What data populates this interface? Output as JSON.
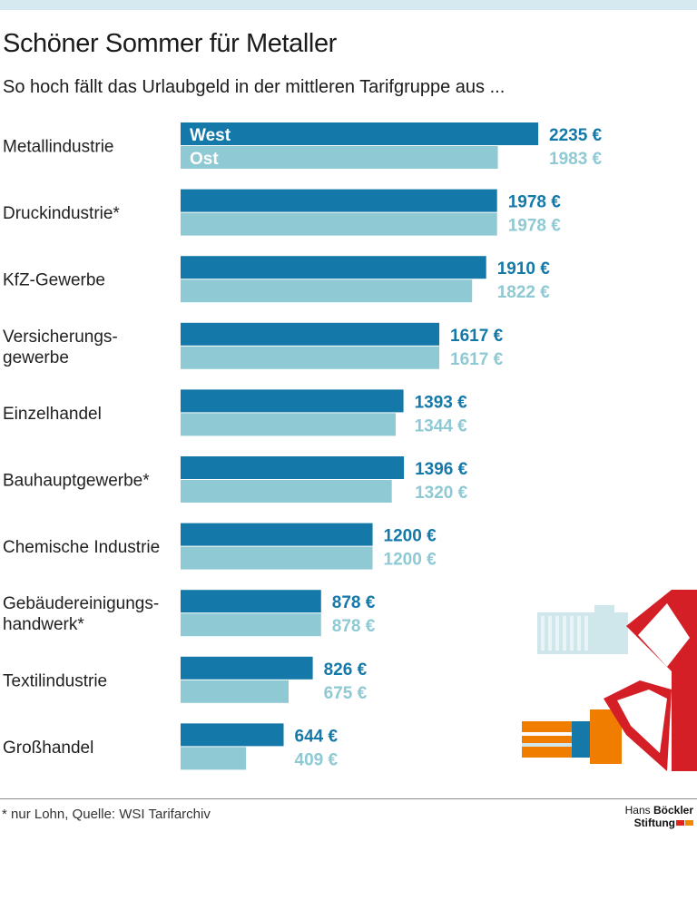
{
  "header": {
    "title": "Schöner Sommer für Metaller",
    "subtitle": "So hoch fällt das Urlaubgeld in der mittleren Tarifgruppe aus ..."
  },
  "chart_data": {
    "type": "bar",
    "orientation": "horizontal",
    "unit": "€",
    "categories": [
      [
        "Metallindustrie"
      ],
      [
        "Druckindustrie*"
      ],
      [
        "KfZ-Gewerbe"
      ],
      [
        "Versicherungs-",
        "gewerbe"
      ],
      [
        "Einzelhandel"
      ],
      [
        "Bauhauptgewerbe*"
      ],
      [
        "Chemische Industrie"
      ],
      [
        "Gebäudereinigungs-",
        "handwerk*"
      ],
      [
        "Textilindustrie"
      ],
      [
        "Großhandel"
      ]
    ],
    "series": [
      {
        "name": "West",
        "values": [
          2235,
          1978,
          1910,
          1617,
          1393,
          1396,
          1200,
          878,
          826,
          644
        ]
      },
      {
        "name": "Ost",
        "values": [
          1983,
          1978,
          1822,
          1617,
          1344,
          1320,
          1200,
          878,
          675,
          409
        ]
      }
    ],
    "value_labels": {
      "West": [
        "2235 €",
        "1978 €",
        "1910 €",
        "1617 €",
        "1393 €",
        "1396 €",
        "1200 €",
        "878 €",
        "826 €",
        "644 €"
      ],
      "Ost": [
        "1983 €",
        "1978 €",
        "1822 €",
        "1617 €",
        "1344 €",
        "1320 €",
        "1200 €",
        "878 €",
        "675 €",
        "409 €"
      ]
    },
    "colors": {
      "West": "#1479a8",
      "Ost": "#8ec9d4"
    },
    "xlim": [
      0,
      2235
    ],
    "grid": false,
    "legend": "inside-first-bar"
  },
  "footer": {
    "footnote": "* nur Lohn, Quelle: WSI Tarifarchiv",
    "logo_line1_a": "Hans",
    "logo_line1_b": "Böckler",
    "logo_line2": "Stiftung",
    "logo_colors": [
      "#e2231a",
      "#f18a00"
    ]
  }
}
